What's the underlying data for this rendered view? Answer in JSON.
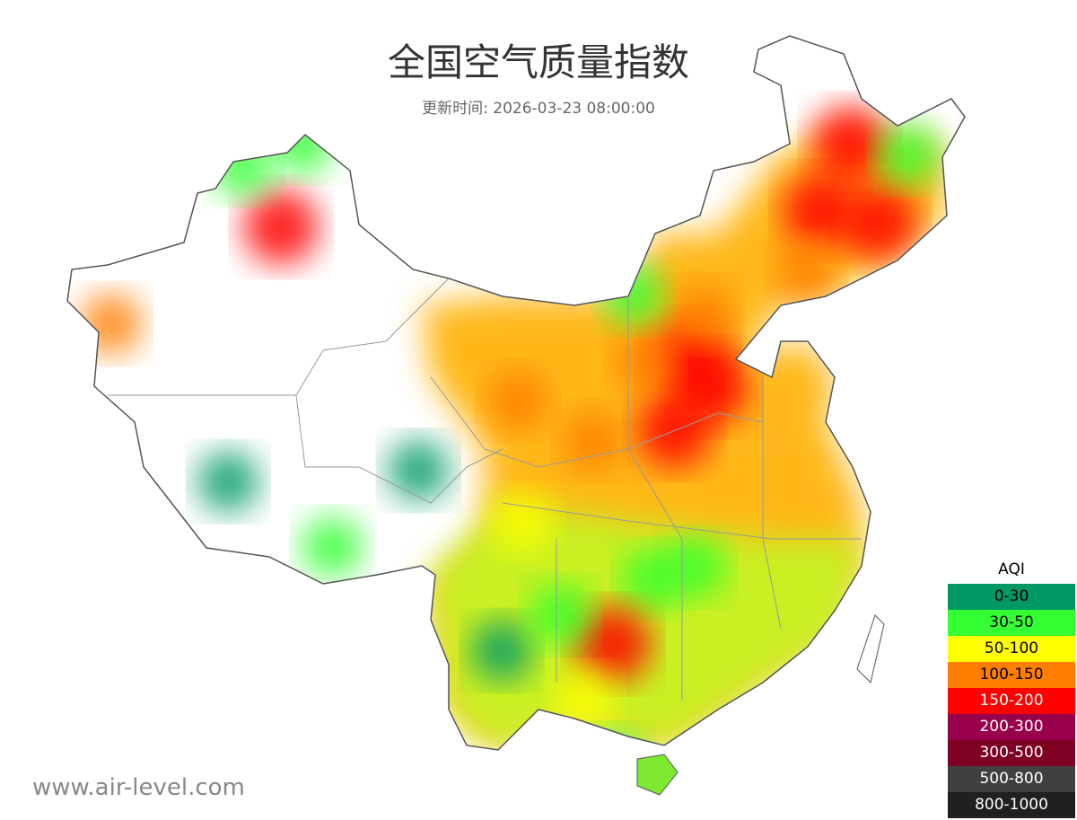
{
  "title": "全国空气质量指数",
  "subtitle": "更新时间: 2026-03-23 08:00:00",
  "watermark": "www.air-level.com",
  "legend": {
    "title": "AQI",
    "items": [
      {
        "label": "0-30",
        "color": "#009966",
        "text_color": "#000000"
      },
      {
        "label": "30-50",
        "color": "#33ff33",
        "text_color": "#000000"
      },
      {
        "label": "50-100",
        "color": "#ffff00",
        "text_color": "#000000"
      },
      {
        "label": "100-150",
        "color": "#ff7e00",
        "text_color": "#000000"
      },
      {
        "label": "150-200",
        "color": "#ff0000",
        "text_color": "#ffffff"
      },
      {
        "label": "200-300",
        "color": "#99004c",
        "text_color": "#ffffff"
      },
      {
        "label": "300-500",
        "color": "#7e0023",
        "text_color": "#ffffff"
      },
      {
        "label": "500-800",
        "color": "#404040",
        "text_color": "#ffffff"
      },
      {
        "label": "800-1000",
        "color": "#202020",
        "text_color": "#ffffff"
      }
    ]
  },
  "map": {
    "type": "heatmap",
    "region": "China",
    "hotspots": [
      {
        "lon": 126.5,
        "lat": 47.5,
        "band": 4
      },
      {
        "lon": 124.5,
        "lat": 44.5,
        "band": 4
      },
      {
        "lon": 128.5,
        "lat": 44.0,
        "band": 4
      },
      {
        "lon": 130.5,
        "lat": 47.0,
        "band": 1
      },
      {
        "lon": 123.5,
        "lat": 41.8,
        "band": 3
      },
      {
        "lon": 117.0,
        "lat": 36.7,
        "band": 4
      },
      {
        "lon": 115.5,
        "lat": 38.0,
        "band": 4
      },
      {
        "lon": 114.5,
        "lat": 34.8,
        "band": 4
      },
      {
        "lon": 116.4,
        "lat": 39.9,
        "band": 3
      },
      {
        "lon": 112.5,
        "lat": 37.8,
        "band": 3
      },
      {
        "lon": 108.9,
        "lat": 34.3,
        "band": 3
      },
      {
        "lon": 103.8,
        "lat": 36.1,
        "band": 3
      },
      {
        "lon": 113.0,
        "lat": 28.2,
        "band": 1
      },
      {
        "lon": 115.9,
        "lat": 28.7,
        "band": 1
      },
      {
        "lon": 110.3,
        "lat": 25.3,
        "band": 4
      },
      {
        "lon": 108.3,
        "lat": 22.8,
        "band": 2
      },
      {
        "lon": 102.7,
        "lat": 25.0,
        "band": 0
      },
      {
        "lon": 106.7,
        "lat": 26.6,
        "band": 1
      },
      {
        "lon": 104.1,
        "lat": 30.7,
        "band": 2
      },
      {
        "lon": 91.1,
        "lat": 29.6,
        "band": 1
      },
      {
        "lon": 97.0,
        "lat": 33.0,
        "band": 0
      },
      {
        "lon": 84.0,
        "lat": 32.5,
        "band": 0
      },
      {
        "lon": 87.6,
        "lat": 43.8,
        "band": 4
      },
      {
        "lon": 85.0,
        "lat": 46.5,
        "band": 1
      },
      {
        "lon": 89.0,
        "lat": 47.5,
        "band": 1
      },
      {
        "lon": 76.0,
        "lat": 39.5,
        "band": 3
      },
      {
        "lon": 111.7,
        "lat": 40.8,
        "band": 1
      },
      {
        "lon": 110.3,
        "lat": 20.0,
        "band": 1
      }
    ]
  }
}
